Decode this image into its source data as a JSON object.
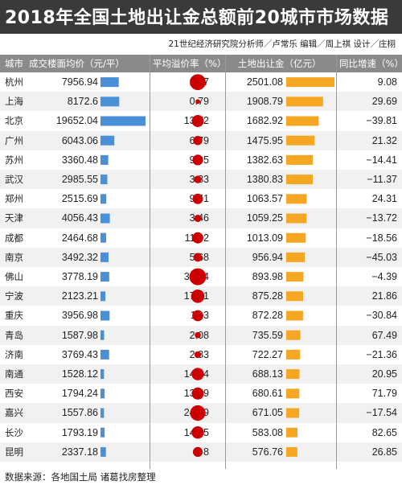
{
  "header": {
    "title": "2018年全国土地出让金总额前20城市市场数据",
    "credit": "21世纪经济研究院分析师／卢常乐  编辑／周上祺  设计／庄栩"
  },
  "columns": {
    "city": "城市",
    "price": "成交楼面均价（元/平）",
    "rate": "平均溢价率（%）",
    "total": "土地出让金（亿元）",
    "growth": "同比增速（%）"
  },
  "footer": "数据来源：各地国土局 诸葛找房整理",
  "colors": {
    "price_bar": "#4a90d9",
    "total_bar": "#f5a623",
    "rate_dot": "#cc0000",
    "title_bg": "#3a3a3a",
    "header_bg": "#8a8a8a"
  },
  "chart_data": {
    "type": "table",
    "categories": [
      "杭州",
      "上海",
      "北京",
      "广州",
      "苏州",
      "武汉",
      "郑州",
      "天津",
      "成都",
      "南京",
      "佛山",
      "宁波",
      "重庆",
      "青岛",
      "济南",
      "南通",
      "西安",
      "嘉兴",
      "长沙",
      "昆明"
    ],
    "series": [
      {
        "name": "成交楼面均价（元/平）",
        "values": [
          "7956.94",
          "8172.6",
          "19652.04",
          "6043.06",
          "3360.48",
          "2985.55",
          "2515.69",
          "4056.43",
          "2464.68",
          "3492.32",
          "3778.19",
          "2123.21",
          "3956.98",
          "1587.98",
          "3769.43",
          "1528.12",
          "1794.24",
          "1557.86",
          "1793.19",
          "2337.18"
        ]
      },
      {
        "name": "平均溢价率（%）",
        "values": [
          "26.7",
          "0.79",
          "13.72",
          "6.79",
          "9.95",
          "3.83",
          "9.51",
          "3.46",
          "11.02",
          "5.68",
          "30.94",
          "17.91",
          "11.3",
          "2.08",
          "2.83",
          "14.84",
          "13.59",
          "24.79",
          "14.65",
          "8"
        ]
      },
      {
        "name": "土地出让金（亿元）",
        "values": [
          "2501.08",
          "1908.79",
          "1682.92",
          "1475.95",
          "1382.63",
          "1380.83",
          "1063.57",
          "1059.25",
          "1013.09",
          "956.94",
          "893.98",
          "875.28",
          "872.28",
          "735.59",
          "722.27",
          "688.13",
          "680.61",
          "671.05",
          "583.08",
          "576.76"
        ]
      },
      {
        "name": "同比增速（%）",
        "values": [
          "9.08",
          "29.69",
          "−39.81",
          "21.32",
          "−14.41",
          "−11.37",
          "24.31",
          "−13.72",
          "−18.56",
          "−45.03",
          "−4.39",
          "21.86",
          "−30.84",
          "67.49",
          "−21.36",
          "20.95",
          "71.79",
          "−17.54",
          "82.65",
          "26.85"
        ]
      }
    ]
  }
}
